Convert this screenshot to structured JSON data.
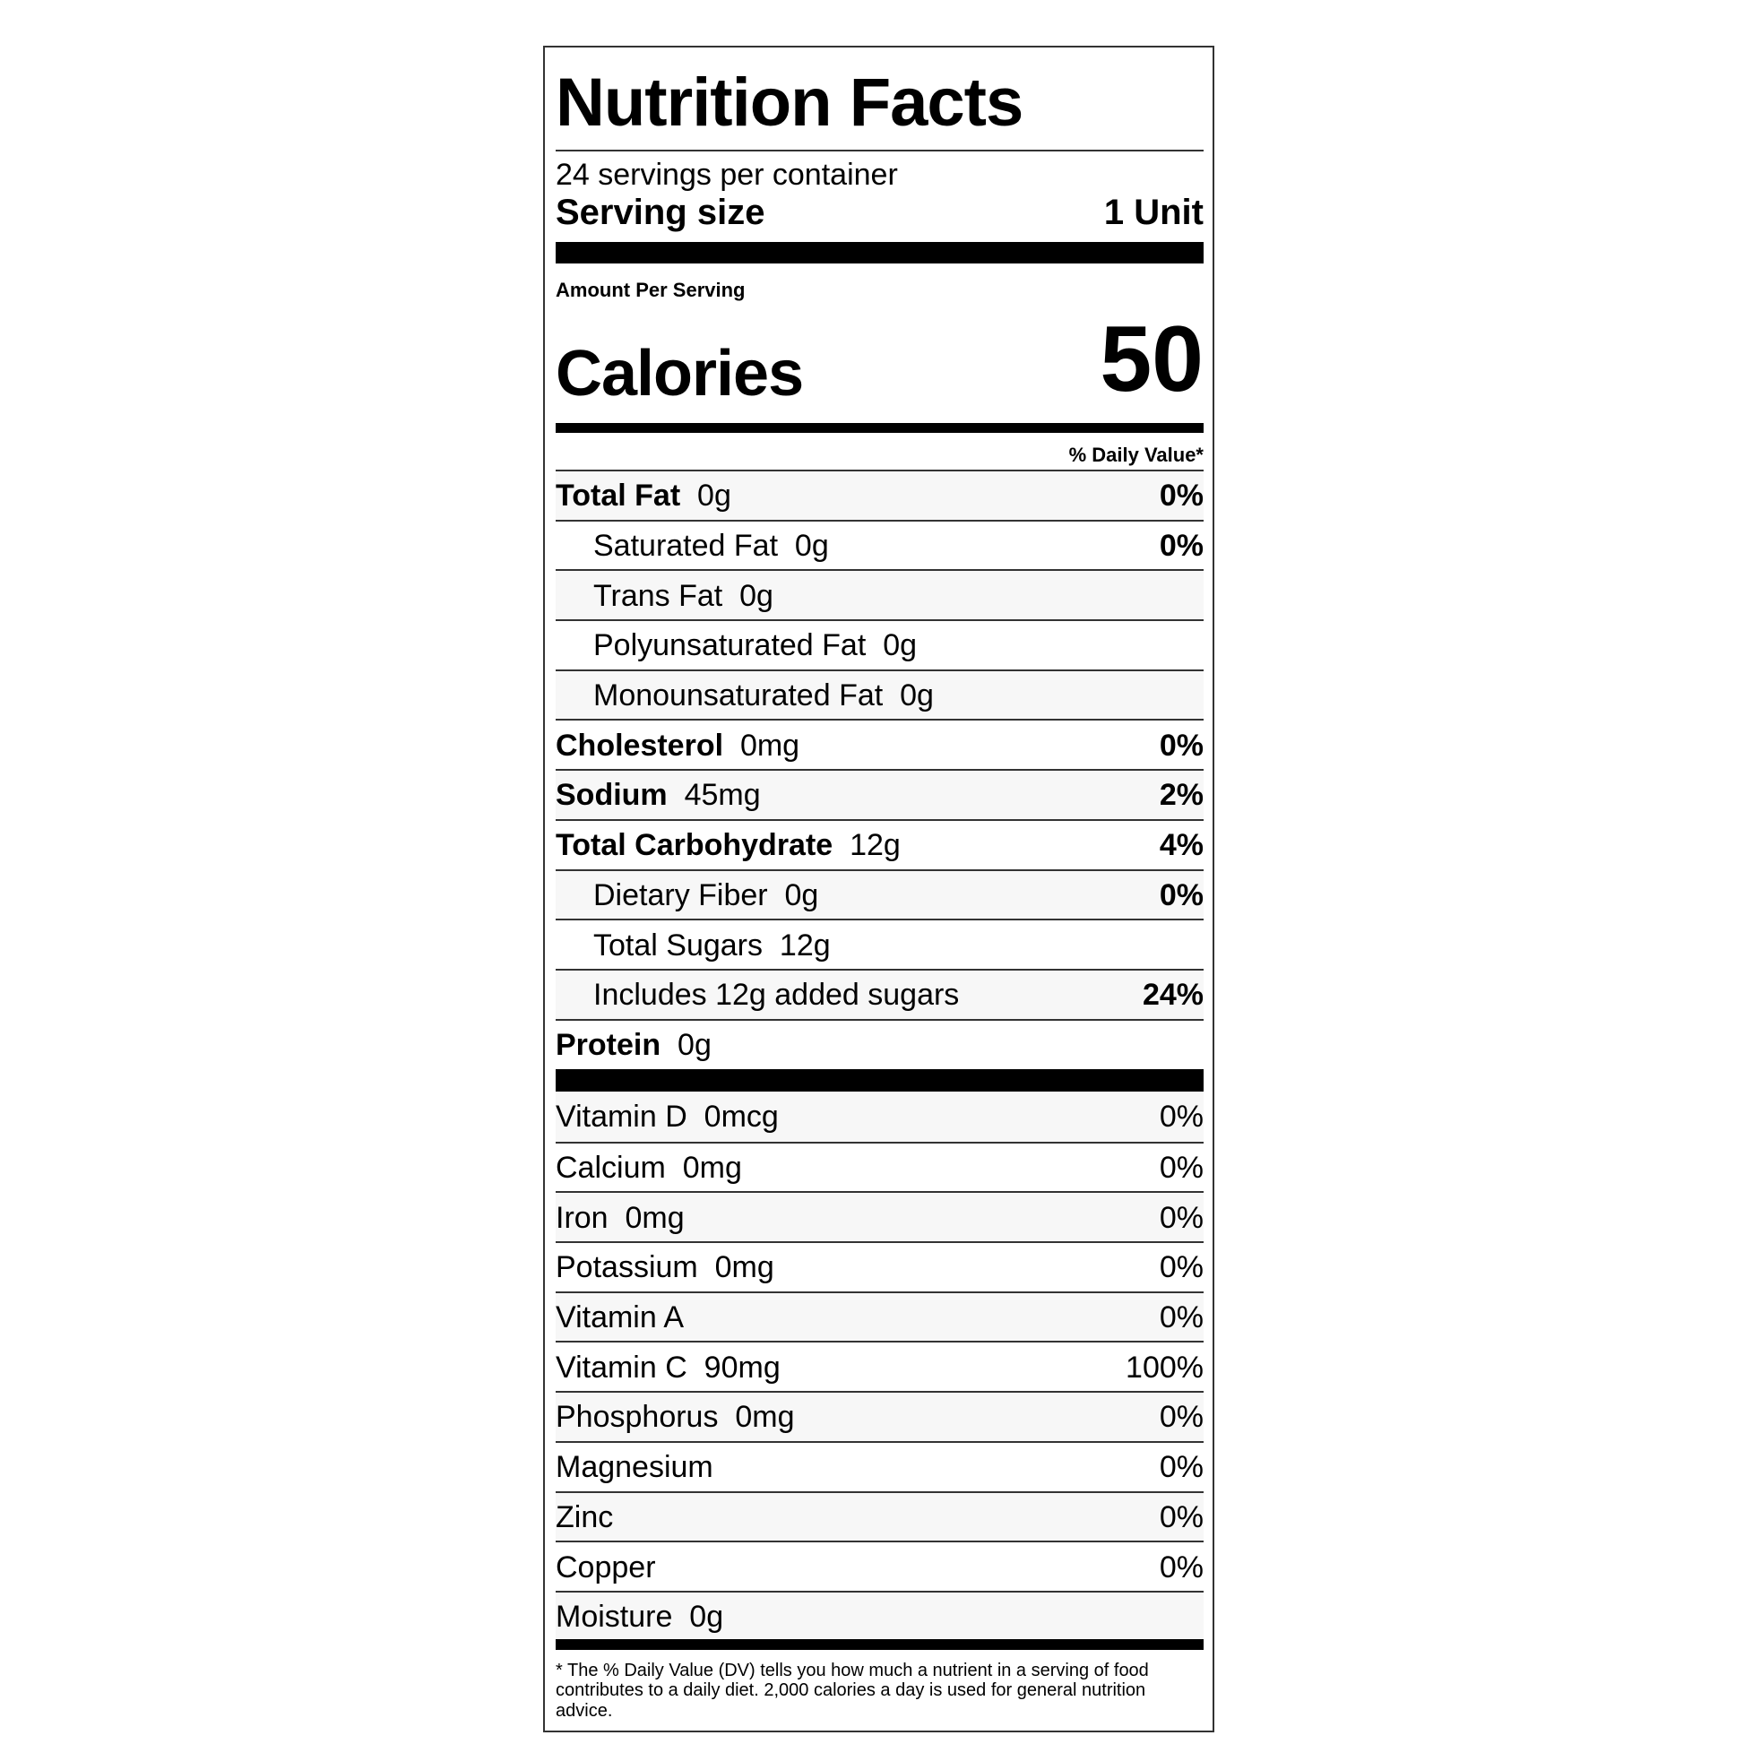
{
  "title": "Nutrition Facts",
  "servings_per_container": "24 servings per container",
  "serving_size": {
    "label": "Serving size",
    "value": "1 Unit"
  },
  "amount_per_serving": "Amount Per Serving",
  "calories": {
    "label": "Calories",
    "value": "50"
  },
  "daily_value_header": "% Daily Value*",
  "nutrients": [
    {
      "name": "Total Fat",
      "amount": "0g",
      "dv": "0%",
      "bold": true,
      "indent": false
    },
    {
      "name": "Saturated Fat",
      "amount": "0g",
      "dv": "0%",
      "bold": false,
      "indent": true
    },
    {
      "name": "Trans Fat",
      "amount": "0g",
      "dv": "",
      "bold": false,
      "indent": true
    },
    {
      "name": "Polyunsaturated Fat",
      "amount": "0g",
      "dv": "",
      "bold": false,
      "indent": true
    },
    {
      "name": "Monounsaturated Fat",
      "amount": "0g",
      "dv": "",
      "bold": false,
      "indent": true
    },
    {
      "name": "Cholesterol",
      "amount": "0mg",
      "dv": "0%",
      "bold": true,
      "indent": false
    },
    {
      "name": "Sodium",
      "amount": "45mg",
      "dv": "2%",
      "bold": true,
      "indent": false
    },
    {
      "name": "Total Carbohydrate",
      "amount": "12g",
      "dv": "4%",
      "bold": true,
      "indent": false
    },
    {
      "name": "Dietary Fiber",
      "amount": "0g",
      "dv": "0%",
      "bold": false,
      "indent": true
    },
    {
      "name": "Total Sugars",
      "amount": "12g",
      "dv": "",
      "bold": false,
      "indent": true
    },
    {
      "name": "Includes 12g added sugars",
      "amount": "",
      "dv": "24%",
      "bold": false,
      "indent": true
    },
    {
      "name": "Protein",
      "amount": "0g",
      "dv": "",
      "bold": true,
      "indent": false
    }
  ],
  "vitamins": [
    {
      "name": "Vitamin D",
      "amount": "0mcg",
      "dv": "0%"
    },
    {
      "name": "Calcium",
      "amount": "0mg",
      "dv": "0%"
    },
    {
      "name": "Iron",
      "amount": "0mg",
      "dv": "0%"
    },
    {
      "name": "Potassium",
      "amount": "0mg",
      "dv": "0%"
    },
    {
      "name": "Vitamin A",
      "amount": "",
      "dv": "0%"
    },
    {
      "name": "Vitamin C",
      "amount": "90mg",
      "dv": "100%"
    },
    {
      "name": "Phosphorus",
      "amount": "0mg",
      "dv": "0%"
    },
    {
      "name": "Magnesium",
      "amount": "",
      "dv": "0%"
    },
    {
      "name": "Zinc",
      "amount": "",
      "dv": "0%"
    },
    {
      "name": "Copper",
      "amount": "",
      "dv": "0%"
    },
    {
      "name": "Moisture",
      "amount": "0g",
      "dv": ""
    }
  ],
  "footnote": "* The % Daily Value (DV) tells you how much a nutrient in a serving of food contributes to a daily diet. 2,000 calories a day is used for general nutrition advice."
}
